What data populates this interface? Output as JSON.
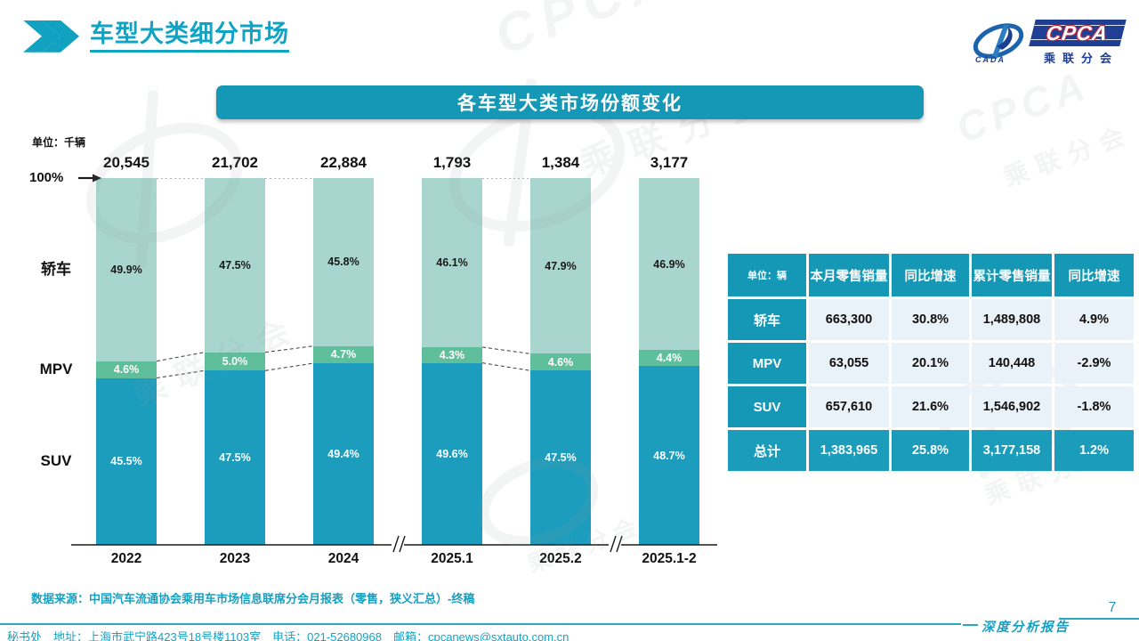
{
  "header": {
    "title": "车型大类细分市场",
    "logo": {
      "cada_label": "CADA",
      "cpca_label": "CPCA",
      "cpca_sub": "乘联分会"
    }
  },
  "banner_title": "各车型大类市场份额变化",
  "chart_data": {
    "type": "bar",
    "variant": "stacked-100-percent",
    "title": "各车型大类市场份额变化",
    "unit_note": "单位：千辆",
    "y_marker": "100%",
    "categories": [
      "2022",
      "2023",
      "2024",
      "2025.1",
      "2025.2",
      "2025.1-2"
    ],
    "totals": [
      "20,545",
      "21,702",
      "22,884",
      "1,793",
      "1,384",
      "3,177"
    ],
    "series": [
      {
        "name": "轿车",
        "values": [
          49.9,
          47.5,
          45.8,
          46.1,
          47.9,
          46.9
        ]
      },
      {
        "name": "MPV",
        "values": [
          4.6,
          5.0,
          4.7,
          4.3,
          4.6,
          4.4
        ]
      },
      {
        "name": "SUV",
        "values": [
          45.5,
          47.5,
          49.4,
          49.6,
          47.5,
          48.7
        ]
      }
    ],
    "series_colors": {
      "轿车": "#a8d6ce",
      "MPV": "#5fbf9d",
      "SUV": "#1d9dbd"
    },
    "label_colors": {
      "轿车": "#1a1a1a",
      "MPV": "#ffffff",
      "SUV": "#ffffff"
    },
    "axis_breaks_between": [
      [
        "2024",
        "2025.1"
      ],
      [
        "2025.2",
        "2025.1-2"
      ]
    ],
    "connected_pairs": [
      [
        0,
        1
      ],
      [
        1,
        2
      ],
      [
        3,
        4
      ]
    ],
    "grid": false,
    "legend_position": "left-side-category-labels"
  },
  "table": {
    "headers": [
      "单位：辆",
      "本月零售销量",
      "同比增速",
      "累计零售销量",
      "同比增速"
    ],
    "rows": [
      {
        "label": "轿车",
        "cells": [
          "663,300",
          "30.8%",
          "1,489,808",
          "4.9%"
        ],
        "highlight": false
      },
      {
        "label": "MPV",
        "cells": [
          "63,055",
          "20.1%",
          "140,448",
          "-2.9%"
        ],
        "highlight": false
      },
      {
        "label": "SUV",
        "cells": [
          "657,610",
          "21.6%",
          "1,546,902",
          "-1.8%"
        ],
        "highlight": false
      },
      {
        "label": "总计",
        "cells": [
          "1,383,965",
          "25.8%",
          "3,177,158",
          "1.2%"
        ],
        "highlight": true
      }
    ]
  },
  "source_note": "数据来源：中国汽车流通协会乘用车市场信息联席分会月报表（零售，狭义汇总）-终稿",
  "footer": {
    "text": "秘书处　地址：上海市武宁路423号18号楼1103室　电话：021-52680968　邮箱：cpcanews@sxtauto.com.cn",
    "page_number": "7",
    "report_label": "深度分析报告"
  },
  "watermark": {
    "brand": "CPCA",
    "sub": "乘联分会",
    "cada": "CADA"
  },
  "colors": {
    "accent_teal": "#1598b6",
    "suv_bar": "#1d9dbd",
    "mpv_bar": "#5fbf9d",
    "sedan_bar": "#a8d6ce",
    "table_cell_bg": "#e9f1f9",
    "logo_navy": "#1e3f94",
    "logo_red": "#c2283a"
  }
}
